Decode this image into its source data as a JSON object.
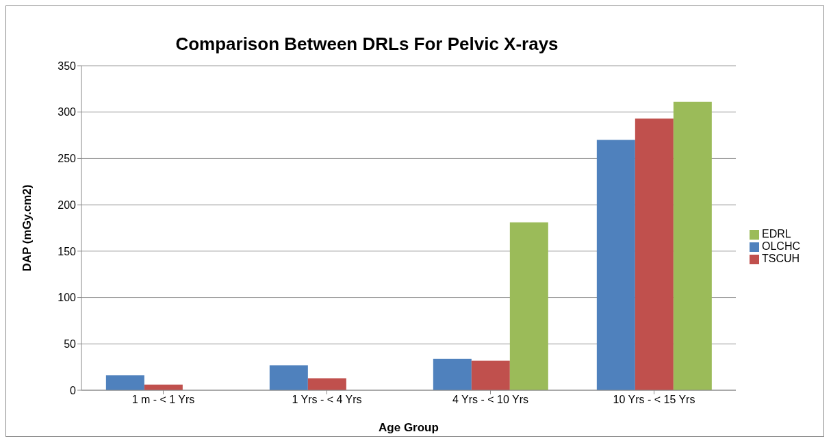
{
  "chart_data": {
    "type": "bar",
    "title": "Comparison Between DRLs For Pelvic X-rays",
    "xlabel": "Age Group",
    "ylabel": "DAP (mGy.cm2)",
    "categories": [
      "1 m - < 1 Yrs",
      "1 Yrs - < 4 Yrs",
      "4 Yrs - < 10 Yrs",
      "10 Yrs - < 15 Yrs"
    ],
    "series": [
      {
        "name": "OLCHC",
        "color": "#4f81bd",
        "values": [
          16,
          27,
          34,
          270
        ]
      },
      {
        "name": "TSCUH",
        "color": "#c0504d",
        "values": [
          6,
          13,
          32,
          293
        ]
      },
      {
        "name": "EDRL",
        "color": "#9bbb59",
        "values": [
          null,
          null,
          181,
          311
        ]
      }
    ],
    "ylim": [
      0,
      350
    ],
    "yticks": [
      0,
      50,
      100,
      150,
      200,
      250,
      300,
      350
    ],
    "grid": "y",
    "legend": "right"
  }
}
